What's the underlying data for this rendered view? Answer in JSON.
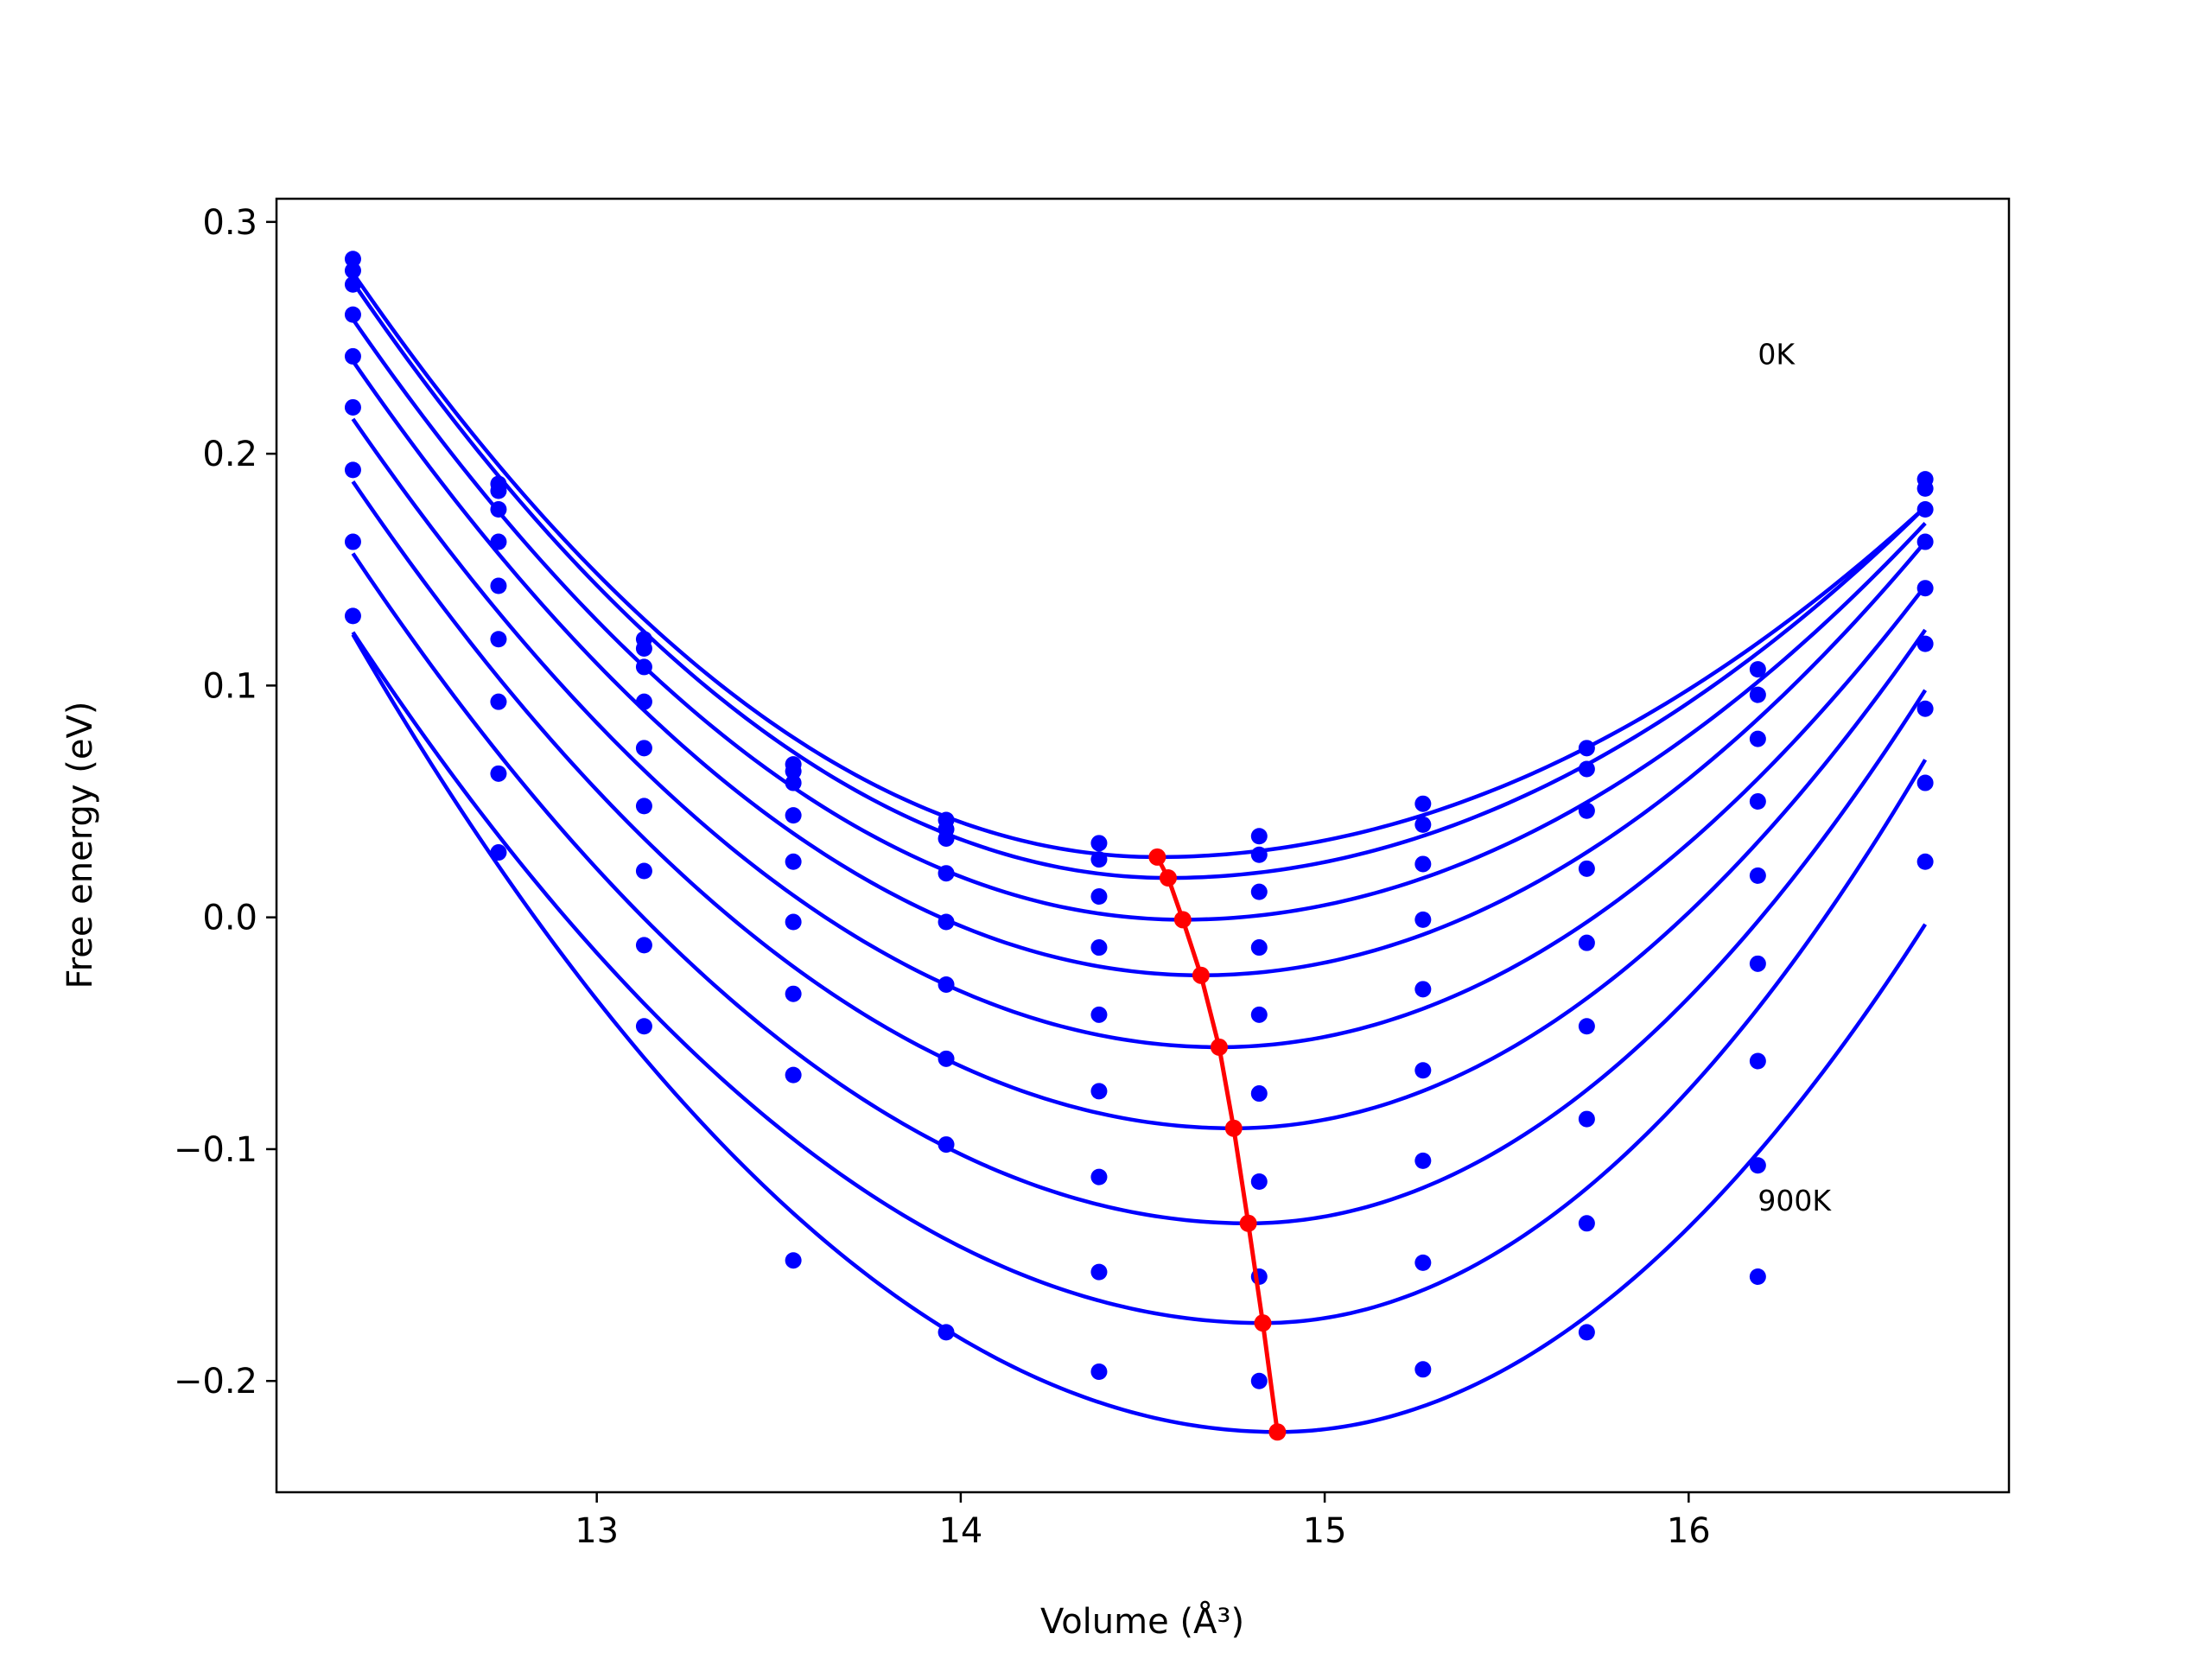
{
  "chart_data": {
    "type": "line",
    "xlabel": "Volume",
    "xlabel_unit": "(Å³)",
    "ylabel": "Free energy (eV)",
    "xlim": [
      12.12,
      16.88
    ],
    "ylim": [
      -0.248,
      0.31
    ],
    "xticks": [
      13,
      14,
      15,
      16
    ],
    "xtick_labels": [
      "13",
      "14",
      "15",
      "16"
    ],
    "yticks": [
      -0.2,
      -0.1,
      0.0,
      0.1,
      0.2,
      0.3
    ],
    "ytick_labels": [
      "−0.2",
      "−0.1",
      "0.0",
      "0.1",
      "0.2",
      "0.3"
    ],
    "grid": false,
    "annotations": [
      {
        "text": "0K",
        "x": 16.19,
        "y": 0.243
      },
      {
        "text": "900K",
        "x": 16.19,
        "y": -0.122
      }
    ],
    "colors": {
      "curves": "#0000ff",
      "equilibrium": "#ff0000"
    },
    "x_points": [
      12.33,
      12.73,
      13.13,
      13.54,
      13.96,
      14.38,
      14.82,
      15.27,
      15.72,
      16.19,
      16.65
    ],
    "series": [
      {
        "fit": {
          "v0": 14.54,
          "f0": 0.026,
          "f_left": 0.278,
          "f_right": 0.177
        },
        "points": [
          0.284,
          0.187,
          0.12,
          0.066,
          0.042,
          0.032,
          0.035,
          0.049,
          0.073,
          0.107,
          0.189
        ]
      },
      {
        "fit": {
          "v0": 14.57,
          "f0": 0.017,
          "f_left": 0.274,
          "f_right": 0.177
        },
        "points": [
          0.279,
          0.184,
          0.116,
          0.063,
          0.038,
          0.025,
          0.027,
          0.04,
          0.064,
          0.096,
          0.185
        ]
      },
      {
        "fit": {
          "v0": 14.61,
          "f0": -0.001,
          "f_left": 0.258,
          "f_right": 0.17
        },
        "points": [
          0.273,
          0.176,
          0.108,
          0.058,
          0.034,
          0.009,
          0.011,
          0.023,
          0.046,
          0.077,
          0.176
        ]
      },
      {
        "fit": {
          "v0": 14.66,
          "f0": -0.025,
          "f_left": 0.24,
          "f_right": 0.162
        },
        "points": [
          0.26,
          0.162,
          0.093,
          0.044,
          0.019,
          -0.013,
          -0.013,
          -0.001,
          0.021,
          0.05,
          0.162
        ]
      },
      {
        "fit": {
          "v0": 14.71,
          "f0": -0.056,
          "f_left": 0.215,
          "f_right": 0.143
        },
        "points": [
          0.242,
          0.143,
          0.073,
          0.024,
          -0.002,
          -0.042,
          -0.042,
          -0.031,
          -0.011,
          0.018,
          0.142
        ]
      },
      {
        "fit": {
          "v0": 14.75,
          "f0": -0.091,
          "f_left": 0.188,
          "f_right": 0.124
        },
        "points": [
          0.22,
          0.12,
          0.048,
          -0.002,
          -0.029,
          -0.075,
          -0.076,
          -0.066,
          -0.047,
          -0.02,
          0.118
        ]
      },
      {
        "fit": {
          "v0": 14.79,
          "f0": -0.132,
          "f_left": 0.157,
          "f_right": 0.098
        },
        "points": [
          0.193,
          0.093,
          0.02,
          -0.033,
          -0.061,
          -0.112,
          -0.114,
          -0.105,
          -0.087,
          -0.062,
          0.09
        ]
      },
      {
        "fit": {
          "v0": 14.83,
          "f0": -0.175,
          "f_left": 0.123,
          "f_right": 0.068
        },
        "points": [
          0.162,
          0.062,
          -0.012,
          -0.068,
          -0.098,
          -0.153,
          -0.155,
          -0.149,
          -0.132,
          -0.107,
          0.058
        ]
      },
      {
        "fit": {
          "v0": 14.87,
          "f0": -0.222,
          "f_left": 0.122,
          "f_right": -0.003
        },
        "points": [
          0.13,
          0.028,
          -0.047,
          -0.148,
          -0.179,
          -0.196,
          -0.2,
          -0.195,
          -0.179,
          -0.155,
          0.024
        ]
      }
    ],
    "equilibrium": {
      "x": [
        14.54,
        14.57,
        14.61,
        14.66,
        14.71,
        14.75,
        14.79,
        14.83,
        14.87
      ],
      "y": [
        0.026,
        0.017,
        -0.001,
        -0.025,
        -0.056,
        -0.091,
        -0.132,
        -0.175,
        -0.222
      ]
    }
  }
}
